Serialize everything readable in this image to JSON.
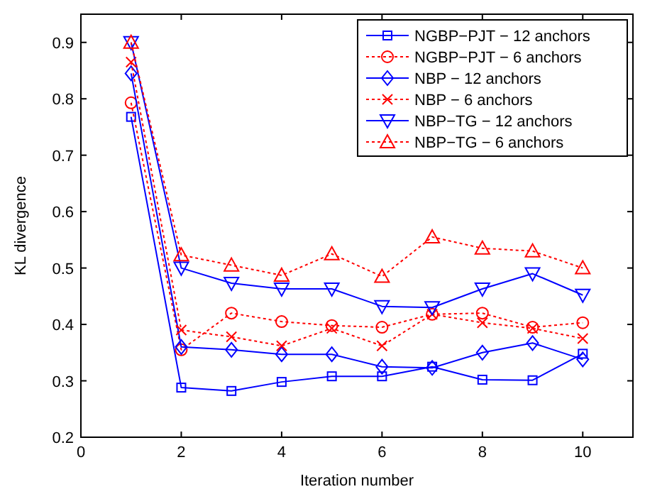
{
  "chart_data": {
    "type": "line",
    "xlabel": "Iteration number",
    "ylabel": "KL divergence",
    "x": [
      1,
      2,
      3,
      4,
      5,
      6,
      7,
      8,
      9,
      10
    ],
    "xlim": [
      0,
      11
    ],
    "xticks": [
      0,
      2,
      4,
      6,
      8,
      10
    ],
    "ylim": [
      0.2,
      0.95
    ],
    "yticks": [
      0.2,
      0.3,
      0.4,
      0.5,
      0.6,
      0.7,
      0.8,
      0.9
    ],
    "legend": "top right",
    "grid": false,
    "series": [
      {
        "name": "NGBP−PJT − 12 anchors",
        "color": "#0000ff",
        "marker": "square",
        "line_style": "solid",
        "values": [
          0.768,
          0.288,
          0.282,
          0.298,
          0.308,
          0.308,
          0.325,
          0.302,
          0.301,
          0.348
        ]
      },
      {
        "name": "NGBP−PJT − 6 anchors",
        "color": "#ff0000",
        "marker": "circle",
        "line_style": "dotted",
        "values": [
          0.793,
          0.355,
          0.42,
          0.405,
          0.398,
          0.395,
          0.418,
          0.42,
          0.395,
          0.403
        ]
      },
      {
        "name": "NBP − 12 anchors",
        "color": "#0000ff",
        "marker": "diamond",
        "line_style": "solid",
        "values": [
          0.845,
          0.36,
          0.355,
          0.347,
          0.347,
          0.325,
          0.323,
          0.35,
          0.367,
          0.338
        ]
      },
      {
        "name": "NBP − 6 anchors",
        "color": "#ff0000",
        "marker": "cross",
        "line_style": "dotted",
        "values": [
          0.865,
          0.39,
          0.378,
          0.362,
          0.393,
          0.362,
          0.418,
          0.403,
          0.393,
          0.375
        ]
      },
      {
        "name": "NBP−TG − 12 anchors",
        "color": "#0000ff",
        "marker": "triangle-down",
        "line_style": "solid",
        "values": [
          0.9,
          0.5,
          0.473,
          0.463,
          0.463,
          0.432,
          0.43,
          0.463,
          0.49,
          0.452
        ]
      },
      {
        "name": "NBP−TG − 6 anchors",
        "color": "#ff0000",
        "marker": "triangle",
        "line_style": "dotted",
        "values": [
          0.9,
          0.523,
          0.505,
          0.487,
          0.525,
          0.485,
          0.555,
          0.535,
          0.53,
          0.5
        ]
      }
    ]
  }
}
